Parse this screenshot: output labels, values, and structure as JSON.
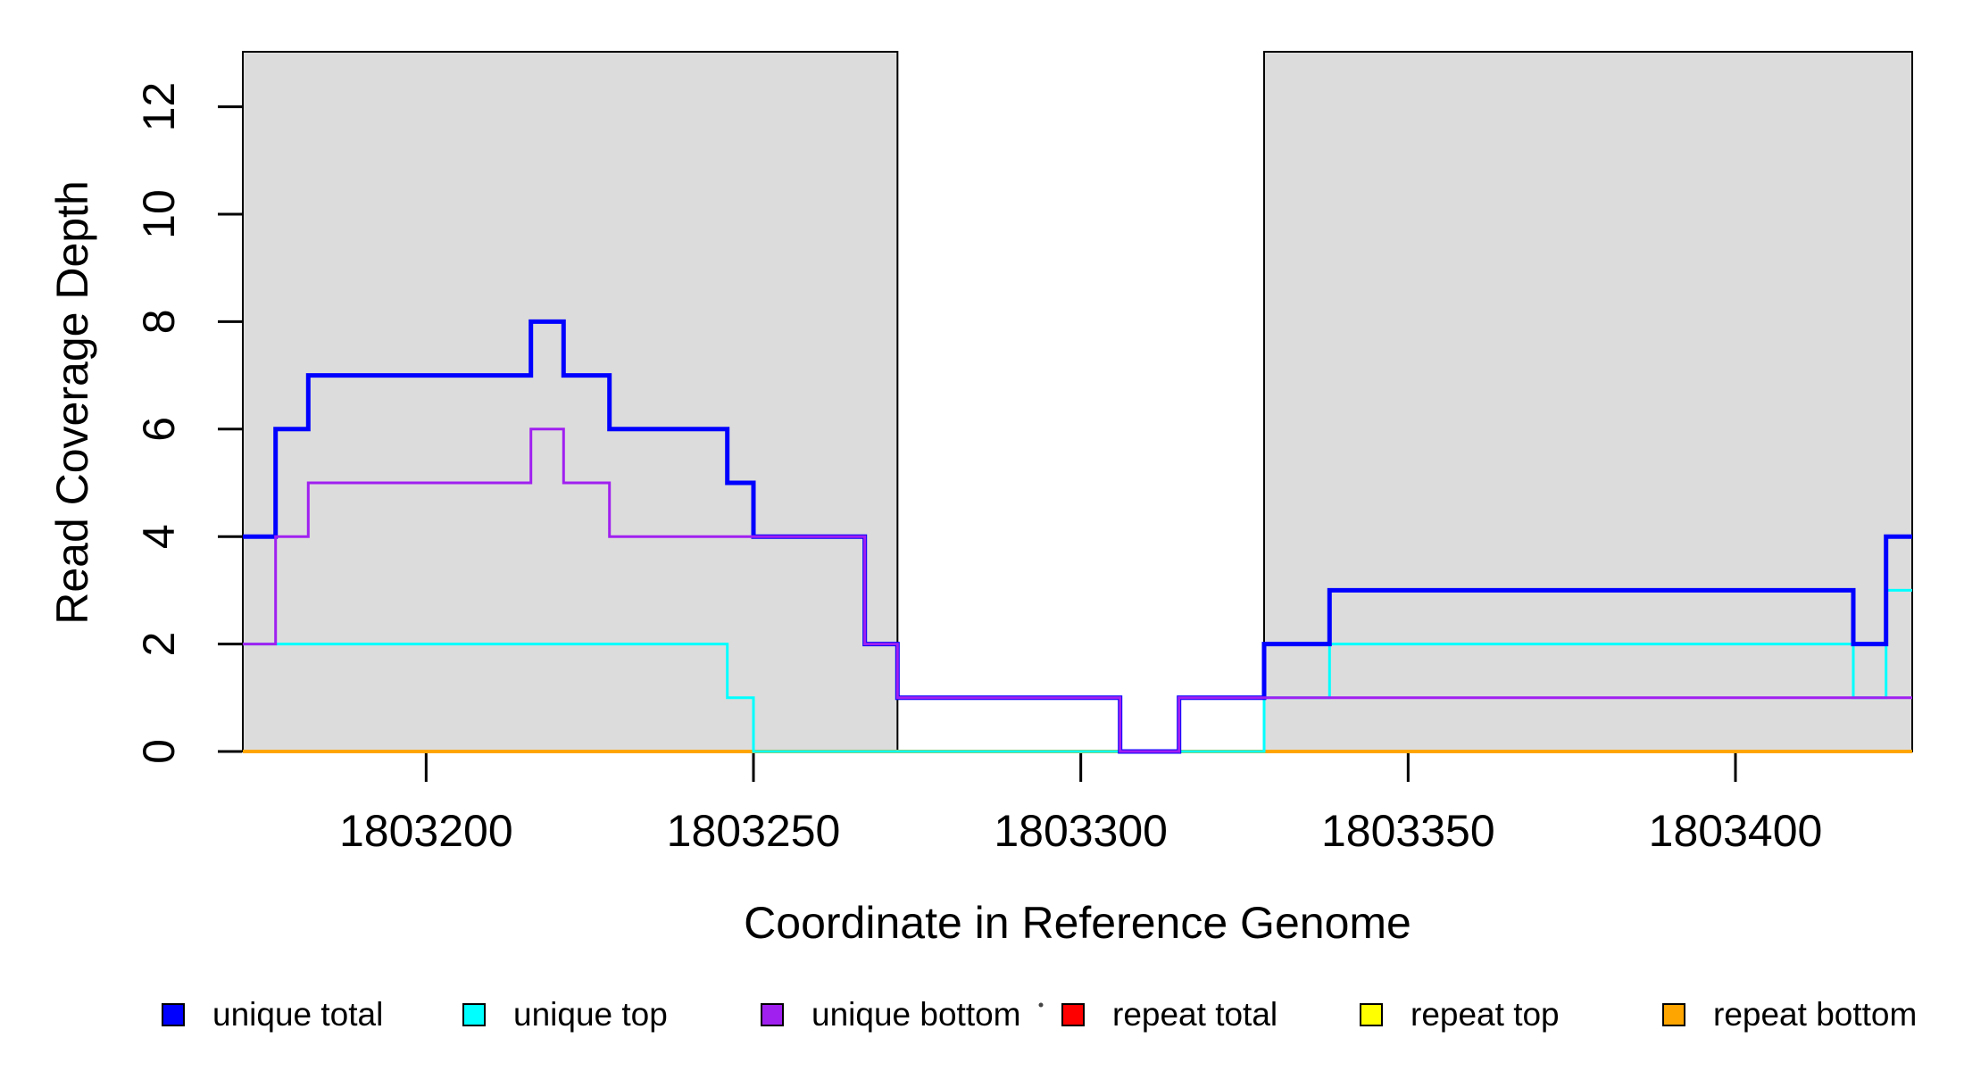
{
  "chart_data": {
    "type": "line",
    "subtype": "step",
    "title": "",
    "xlabel": "Coordinate in Reference Genome",
    "ylabel": "Read Coverage Depth",
    "xlim": [
      1803172,
      1803427
    ],
    "ylim": [
      0,
      13
    ],
    "grid": false,
    "x_ticks": [
      "1803200",
      "1803250",
      "1803300",
      "1803350",
      "1803400"
    ],
    "x_tick_values": [
      1803200,
      1803250,
      1803300,
      1803350,
      1803400
    ],
    "y_ticks": [
      "0",
      "2",
      "4",
      "6",
      "8",
      "10",
      "12"
    ],
    "y_tick_values": [
      0,
      2,
      4,
      6,
      8,
      10,
      12
    ],
    "shaded_regions": {
      "fill": "#DCDCDC",
      "border": "#000000",
      "ranges": [
        [
          1803172,
          1803272
        ],
        [
          1803328,
          1803427
        ]
      ]
    },
    "series": [
      {
        "name": "unique total",
        "color": "#0000FF",
        "width": 5,
        "steps": [
          [
            1803172,
            4
          ],
          [
            1803177,
            6
          ],
          [
            1803182,
            7
          ],
          [
            1803216,
            8
          ],
          [
            1803221,
            7
          ],
          [
            1803228,
            6
          ],
          [
            1803246,
            5
          ],
          [
            1803250,
            4
          ],
          [
            1803267,
            2
          ],
          [
            1803272,
            1
          ],
          [
            1803306,
            0
          ],
          [
            1803315,
            1
          ],
          [
            1803328,
            2
          ],
          [
            1803338,
            3
          ],
          [
            1803418,
            2
          ],
          [
            1803423,
            4
          ]
        ]
      },
      {
        "name": "unique top",
        "color": "#00FFFF",
        "width": 3,
        "steps": [
          [
            1803172,
            2
          ],
          [
            1803246,
            1
          ],
          [
            1803250,
            0
          ],
          [
            1803328,
            1
          ],
          [
            1803338,
            2
          ],
          [
            1803418,
            1
          ],
          [
            1803423,
            3
          ]
        ]
      },
      {
        "name": "unique bottom",
        "color": "#A020F0",
        "width": 3,
        "steps": [
          [
            1803172,
            2
          ],
          [
            1803177,
            4
          ],
          [
            1803182,
            5
          ],
          [
            1803216,
            6
          ],
          [
            1803221,
            5
          ],
          [
            1803228,
            4
          ],
          [
            1803267,
            2
          ],
          [
            1803272,
            1
          ],
          [
            1803306,
            0
          ],
          [
            1803315,
            1
          ]
        ]
      },
      {
        "name": "repeat total",
        "color": "#FF0000",
        "width": 3,
        "steps": [
          [
            1803172,
            0
          ]
        ]
      },
      {
        "name": "repeat top",
        "color": "#FFFF00",
        "width": 3,
        "steps": [
          [
            1803172,
            0
          ]
        ]
      },
      {
        "name": "repeat bottom",
        "color": "#FFA500",
        "width": 4,
        "steps": [
          [
            1803172,
            0
          ]
        ]
      }
    ],
    "draw_order": [
      "repeat total",
      "repeat top",
      "repeat bottom",
      "unique top",
      "unique total",
      "unique bottom"
    ],
    "legend": {
      "position": "bottom",
      "items": [
        {
          "label": "unique total",
          "color": "#0000FF"
        },
        {
          "label": "unique top",
          "color": "#00FFFF"
        },
        {
          "label": "unique bottom",
          "color": "#A020F0"
        },
        {
          "label": "repeat total",
          "color": "#FF0000"
        },
        {
          "label": "repeat top",
          "color": "#FFFF00"
        },
        {
          "label": "repeat bottom",
          "color": "#FFA500"
        }
      ],
      "stray_dot": true
    }
  }
}
